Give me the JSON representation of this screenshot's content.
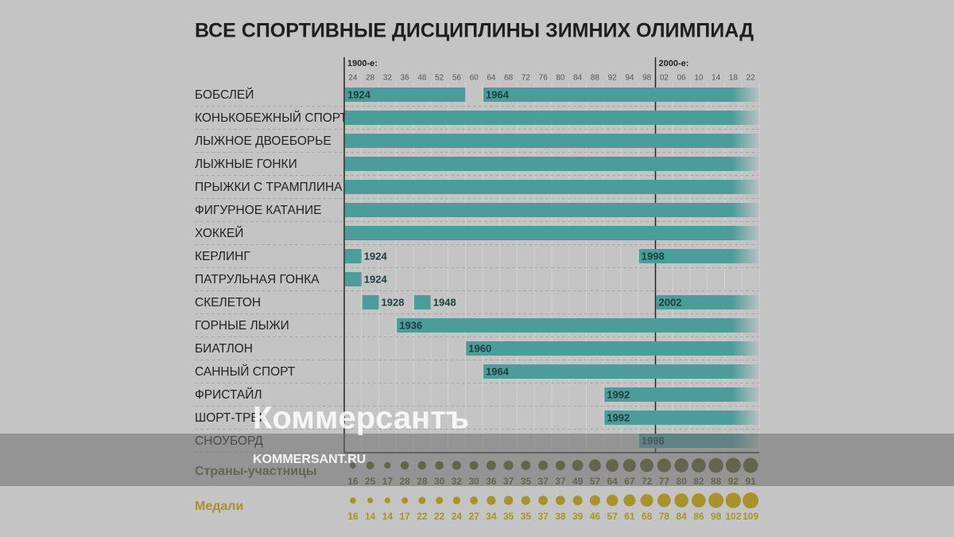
{
  "chart_data": {
    "type": "timeline",
    "title": "ВСЕ СПОРТИВНЫЕ ДИСЦИПЛИНЫ ЗИМНИХ ОЛИМПИАД",
    "xticks": [
      {
        "value": 1924,
        "label": "24"
      },
      {
        "value": 1928,
        "label": "28"
      },
      {
        "value": 1932,
        "label": "32"
      },
      {
        "value": 1936,
        "label": "36"
      },
      {
        "value": 1948,
        "label": "48"
      },
      {
        "value": 1952,
        "label": "52"
      },
      {
        "value": 1956,
        "label": "56"
      },
      {
        "value": 1960,
        "label": "60"
      },
      {
        "value": 1964,
        "label": "64"
      },
      {
        "value": 1968,
        "label": "68"
      },
      {
        "value": 1972,
        "label": "72"
      },
      {
        "value": 1976,
        "label": "76"
      },
      {
        "value": 1980,
        "label": "80"
      },
      {
        "value": 1984,
        "label": "84"
      },
      {
        "value": 1988,
        "label": "88"
      },
      {
        "value": 1992,
        "label": "92"
      },
      {
        "value": 1994,
        "label": "94"
      },
      {
        "value": 1998,
        "label": "98"
      },
      {
        "value": 2002,
        "label": "02"
      },
      {
        "value": 2006,
        "label": "06"
      },
      {
        "value": 2010,
        "label": "10"
      },
      {
        "value": 2014,
        "label": "14"
      },
      {
        "value": 2018,
        "label": "18"
      },
      {
        "value": 2022,
        "label": "22"
      }
    ],
    "decades": [
      {
        "label": "1900-е:",
        "start": 1924
      },
      {
        "label": "2000-е:",
        "start": 2002
      }
    ],
    "bar_color": "#4a9d9b",
    "rows": [
      {
        "name": "БОБСЛЕЙ",
        "segments": [
          {
            "start": 1924,
            "end": 1956,
            "labeled": true
          },
          {
            "start": 1964,
            "end": 2022,
            "labeled": true
          }
        ]
      },
      {
        "name": "КОНЬКОБЕЖНЫЙ СПОРТ",
        "segments": [
          {
            "start": 1924,
            "end": 2022,
            "labeled": false
          }
        ]
      },
      {
        "name": "ЛЫЖНОЕ ДВОЕБОРЬЕ",
        "segments": [
          {
            "start": 1924,
            "end": 2022,
            "labeled": false
          }
        ]
      },
      {
        "name": "ЛЫЖНЫЕ ГОНКИ",
        "segments": [
          {
            "start": 1924,
            "end": 2022,
            "labeled": false
          }
        ]
      },
      {
        "name": "ПРЫЖКИ С ТРАМПЛИНА",
        "segments": [
          {
            "start": 1924,
            "end": 2022,
            "labeled": false
          }
        ]
      },
      {
        "name": "ФИГУРНОЕ КАТАНИЕ",
        "segments": [
          {
            "start": 1924,
            "end": 2022,
            "labeled": false
          }
        ]
      },
      {
        "name": "ХОККЕЙ",
        "segments": [
          {
            "start": 1924,
            "end": 2022,
            "labeled": false
          }
        ]
      },
      {
        "name": "КЕРЛИНГ",
        "segments": [
          {
            "start": 1924,
            "end": 1924,
            "labeled": true
          },
          {
            "start": 1998,
            "end": 2022,
            "labeled": true
          }
        ]
      },
      {
        "name": "ПАТРУЛЬНАЯ ГОНКА",
        "segments": [
          {
            "start": 1924,
            "end": 1924,
            "labeled": true
          }
        ]
      },
      {
        "name": "СКЕЛЕТОН",
        "segments": [
          {
            "start": 1928,
            "end": 1928,
            "labeled": true
          },
          {
            "start": 1948,
            "end": 1948,
            "labeled": true
          },
          {
            "start": 2002,
            "end": 2022,
            "labeled": true
          }
        ]
      },
      {
        "name": "ГОРНЫЕ ЛЫЖИ",
        "segments": [
          {
            "start": 1936,
            "end": 2022,
            "labeled": true
          }
        ]
      },
      {
        "name": "БИАТЛОН",
        "segments": [
          {
            "start": 1960,
            "end": 2022,
            "labeled": true
          }
        ]
      },
      {
        "name": "САННЫЙ СПОРТ",
        "segments": [
          {
            "start": 1964,
            "end": 2022,
            "labeled": true
          }
        ]
      },
      {
        "name": "ФРИСТАЙЛ",
        "segments": [
          {
            "start": 1992,
            "end": 2022,
            "labeled": true
          }
        ]
      },
      {
        "name": "ШОРТ-ТРЕК",
        "segments": [
          {
            "start": 1992,
            "end": 2022,
            "labeled": true
          }
        ]
      },
      {
        "name": "СНОУБОРД",
        "segments": [
          {
            "start": 1998,
            "end": 2022,
            "labeled": true
          }
        ]
      }
    ],
    "series": [
      {
        "name": "Страны-участницы",
        "color": "#5a592b",
        "values": [
          16,
          25,
          17,
          28,
          28,
          30,
          32,
          30,
          36,
          37,
          35,
          37,
          37,
          49,
          57,
          64,
          67,
          72,
          77,
          80,
          82,
          88,
          92,
          91
        ]
      },
      {
        "name": "Медали",
        "color": "#a8922a",
        "values": [
          16,
          14,
          14,
          17,
          22,
          22,
          24,
          27,
          34,
          35,
          35,
          37,
          38,
          39,
          46,
          57,
          61,
          68,
          78,
          84,
          86,
          98,
          102,
          109
        ]
      }
    ]
  },
  "watermark": {
    "logo": "Коммерсантъ",
    "site": "KOMMERSANT.RU"
  }
}
